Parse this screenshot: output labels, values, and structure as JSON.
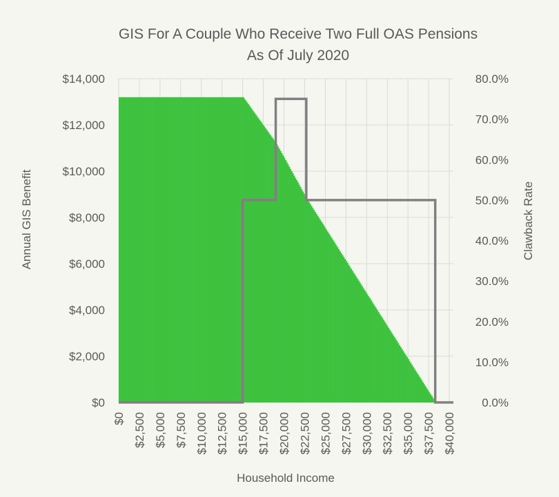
{
  "chart_data": {
    "type": "bar+line",
    "title_line1": "GIS For A Couple Who Receive Two Full OAS Pensions",
    "title_line2": "As Of July 2020",
    "xlabel": "Household Income",
    "ylabel_left": "Annual GIS Benefit",
    "ylabel_right": "Clawback Rate",
    "xlim": [
      0,
      40500
    ],
    "ylim_left": [
      0,
      14000
    ],
    "ylim_right": [
      0,
      80
    ],
    "grid": true,
    "x_ticks": [
      {
        "value": 0,
        "label": "$0"
      },
      {
        "value": 2500,
        "label": "$2,500"
      },
      {
        "value": 5000,
        "label": "$5,000"
      },
      {
        "value": 7500,
        "label": "$7,500"
      },
      {
        "value": 10000,
        "label": "$10,000"
      },
      {
        "value": 12500,
        "label": "$12,500"
      },
      {
        "value": 15000,
        "label": "$15,000"
      },
      {
        "value": 17500,
        "label": "$17,500"
      },
      {
        "value": 20000,
        "label": "$20,000"
      },
      {
        "value": 22500,
        "label": "$22,500"
      },
      {
        "value": 25000,
        "label": "$25,000"
      },
      {
        "value": 27500,
        "label": "$27,500"
      },
      {
        "value": 30000,
        "label": "$30,000"
      },
      {
        "value": 32500,
        "label": "$32,500"
      },
      {
        "value": 35000,
        "label": "$35,000"
      },
      {
        "value": 37500,
        "label": "$37,500"
      },
      {
        "value": 40000,
        "label": "$40,000"
      }
    ],
    "y_left_ticks": [
      {
        "value": 0,
        "label": "$0"
      },
      {
        "value": 2000,
        "label": "$2,000"
      },
      {
        "value": 4000,
        "label": "$4,000"
      },
      {
        "value": 6000,
        "label": "$6,000"
      },
      {
        "value": 8000,
        "label": "$8,000"
      },
      {
        "value": 10000,
        "label": "$10,000"
      },
      {
        "value": 12000,
        "label": "$12,000"
      },
      {
        "value": 14000,
        "label": "$14,000"
      }
    ],
    "y_right_ticks": [
      {
        "value": 0,
        "label": "0.0%"
      },
      {
        "value": 10,
        "label": "10.0%"
      },
      {
        "value": 20,
        "label": "20.0%"
      },
      {
        "value": 30,
        "label": "30.0%"
      },
      {
        "value": 40,
        "label": "40.0%"
      },
      {
        "value": 50,
        "label": "50.0%"
      },
      {
        "value": 60,
        "label": "60.0%"
      },
      {
        "value": 70,
        "label": "70.0%"
      },
      {
        "value": 80,
        "label": "80.0%"
      }
    ],
    "series": [
      {
        "type": "bar",
        "axis": "left",
        "color": "#3fc23f",
        "x": [
          0,
          15000,
          19000,
          22700,
          38100,
          38400
        ],
        "values": [
          13200,
          13200,
          11200,
          8800,
          100,
          0
        ],
        "bar_step": 150
      },
      {
        "type": "line",
        "axis": "right",
        "color": "#808080",
        "step_points": [
          [
            0,
            0
          ],
          [
            15000,
            0
          ],
          [
            15000,
            50
          ],
          [
            19000,
            50
          ],
          [
            19000,
            75
          ],
          [
            22700,
            75
          ],
          [
            22700,
            50
          ],
          [
            38300,
            50
          ],
          [
            38300,
            0
          ],
          [
            40500,
            0
          ]
        ]
      }
    ]
  }
}
